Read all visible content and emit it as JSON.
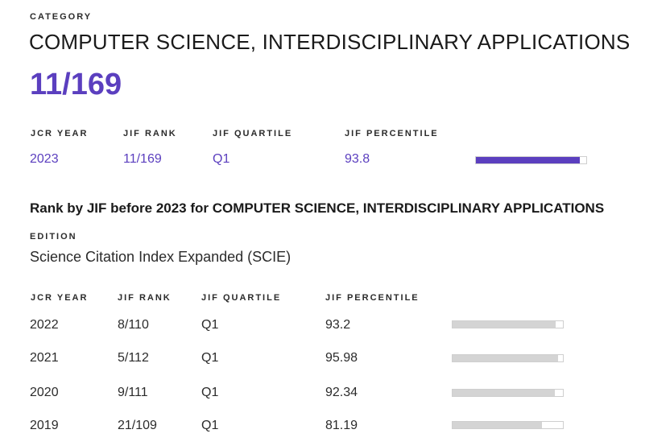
{
  "category": {
    "label": "CATEGORY",
    "name": "COMPUTER SCIENCE, INTERDISCIPLINARY APPLICATIONS",
    "rank": "11/169"
  },
  "current": {
    "headers": {
      "jcr_year": "JCR YEAR",
      "jif_rank": "JIF RANK",
      "jif_quartile": "JIF QUARTILE",
      "jif_percentile": "JIF PERCENTILE"
    },
    "row": {
      "year": "2023",
      "rank": "11/169",
      "quartile": "Q1",
      "percentile": "93.8",
      "percentile_value": 93.8
    }
  },
  "history": {
    "heading": "Rank by JIF before 2023 for COMPUTER SCIENCE, INTERDISCIPLINARY APPLICATIONS",
    "edition_label": "EDITION",
    "edition_value": "Science Citation Index Expanded (SCIE)",
    "headers": {
      "jcr_year": "JCR YEAR",
      "jif_rank": "JIF RANK",
      "jif_quartile": "JIF QUARTILE",
      "jif_percentile": "JIF PERCENTILE"
    },
    "rows": [
      {
        "year": "2022",
        "rank": "8/110",
        "quartile": "Q1",
        "percentile": "93.2",
        "percentile_value": 93.2
      },
      {
        "year": "2021",
        "rank": "5/112",
        "quartile": "Q1",
        "percentile": "95.98",
        "percentile_value": 95.98
      },
      {
        "year": "2020",
        "rank": "9/111",
        "quartile": "Q1",
        "percentile": "92.34",
        "percentile_value": 92.34
      },
      {
        "year": "2019",
        "rank": "21/109",
        "quartile": "Q1",
        "percentile": "81.19",
        "percentile_value": 81.19
      }
    ]
  },
  "colors": {
    "accent": "#5b3fbf",
    "bar_track_gray": "#d4d4d4"
  }
}
